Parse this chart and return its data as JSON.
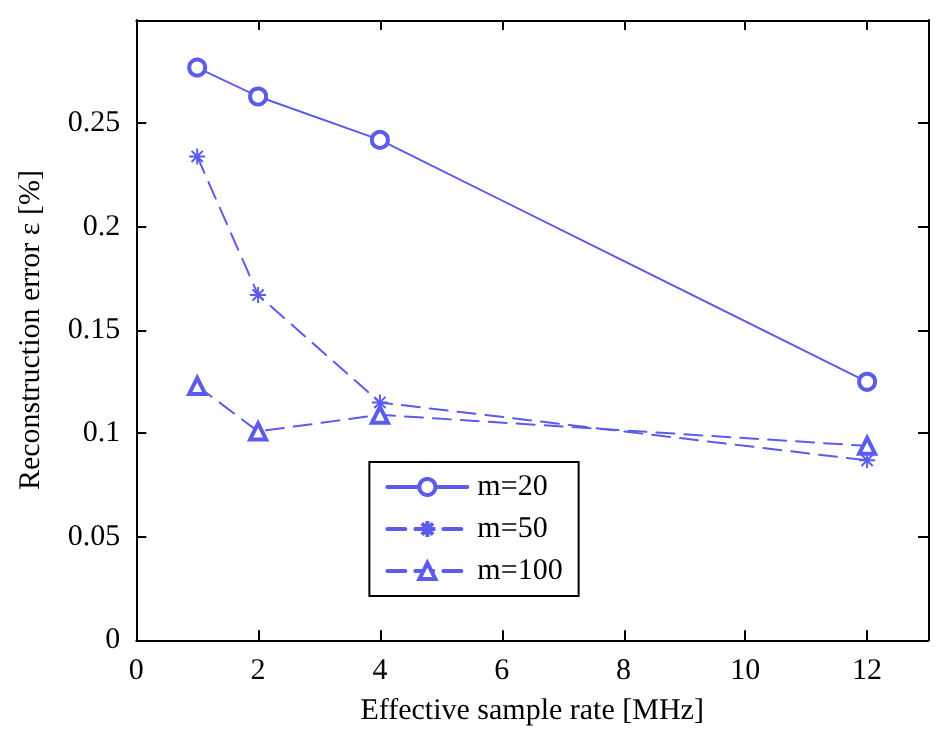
{
  "chart_data": {
    "type": "line",
    "xlabel": "Effective sample rate [MHz]",
    "ylabel": "Reconstruction error ε [%]",
    "x": [
      1,
      2,
      4,
      12
    ],
    "series": [
      {
        "name": "m=20",
        "color": "#5b5bec",
        "values": [
          0.277,
          0.263,
          0.242,
          0.125
        ],
        "marker": "circle",
        "line_style": "solid"
      },
      {
        "name": "m=50",
        "color": "#5b5bec",
        "values": [
          0.234,
          0.167,
          0.115,
          0.087
        ],
        "marker": "cross",
        "line_style": "dashed"
      },
      {
        "name": "m=100",
        "color": "#5b5bec",
        "values": [
          0.123,
          0.101,
          0.109,
          0.094
        ],
        "marker": "triangle",
        "line_style": "dashed"
      }
    ],
    "xlim": [
      0,
      13
    ],
    "xticks": [
      0,
      2,
      4,
      6,
      8,
      10,
      12
    ],
    "ylim": [
      0,
      0.3
    ],
    "yticks": [
      0,
      0.05,
      0.1,
      0.15,
      0.2,
      0.25
    ],
    "grid": false,
    "legend": "bottom"
  }
}
